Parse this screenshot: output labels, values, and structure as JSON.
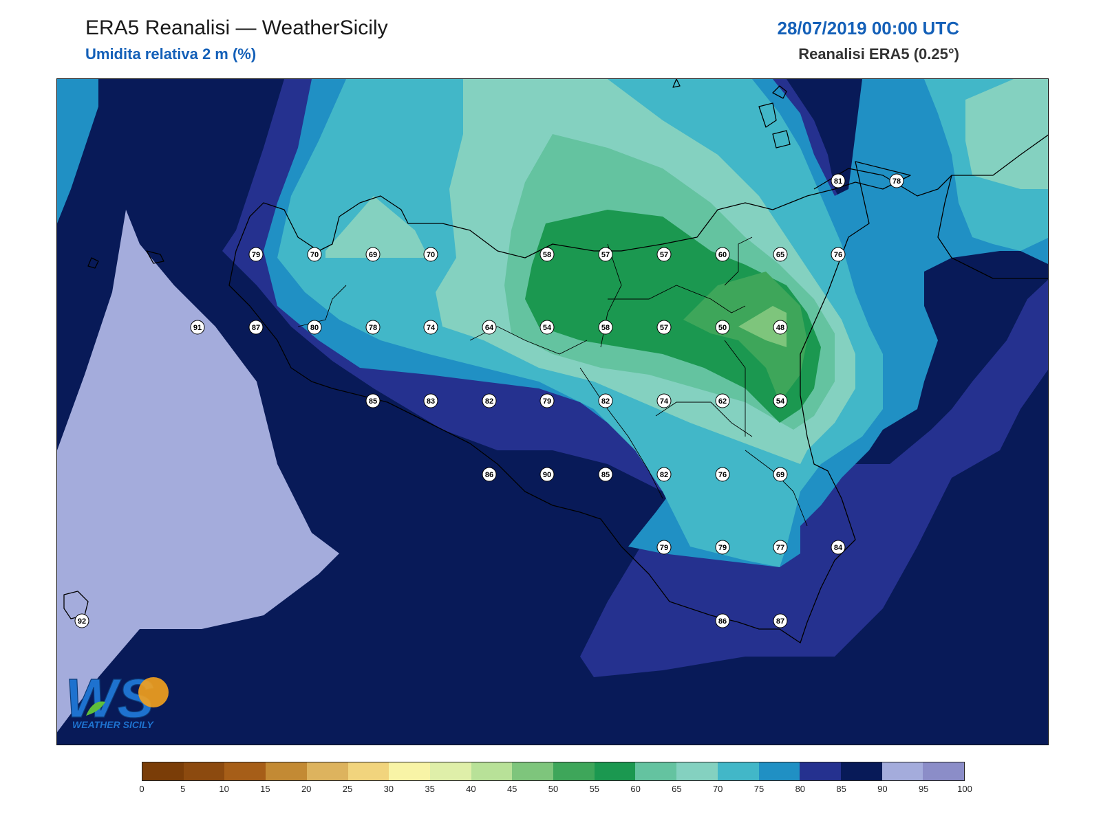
{
  "header": {
    "title": "ERA5 Reanalisi — WeatherSicily",
    "subtitle": "Umidita relativa 2 m (%)",
    "datetime": "28/07/2019 00:00 UTC",
    "source": "Reanalisi ERA5 (0.25°)"
  },
  "logo": {
    "monogram": "WS",
    "caption": "WEATHER SICILY"
  },
  "legend": {
    "ticks": [
      "0",
      "5",
      "10",
      "15",
      "20",
      "25",
      "30",
      "35",
      "40",
      "45",
      "50",
      "55",
      "60",
      "65",
      "70",
      "75",
      "80",
      "85",
      "90",
      "95",
      "100"
    ],
    "colors": [
      "#7a3d08",
      "#8c4a0f",
      "#a65e18",
      "#c38a34",
      "#ddb35e",
      "#f1d47d",
      "#f8f4a6",
      "#dfefa9",
      "#b8e198",
      "#7ec57c",
      "#3ea65a",
      "#1b9850",
      "#64c3a0",
      "#84d1c0",
      "#42b7c8",
      "#2090c4",
      "#25318f",
      "#081a58",
      "#a4acdc",
      "#8b8dc8"
    ]
  },
  "chart_data": {
    "type": "heatmap",
    "title": "Umidita relativa 2 m (%)",
    "valid_time": "28/07/2019 00:00 UTC",
    "colorbar_range": [
      0,
      100
    ],
    "colorbar_step": 5,
    "station_values": [
      {
        "row": 1,
        "values": [
          81,
          78
        ]
      },
      {
        "row": 2,
        "values": [
          79,
          70,
          69,
          70,
          58,
          57,
          57,
          60,
          65,
          76
        ]
      },
      {
        "row": 3,
        "values": [
          91,
          87,
          80,
          78,
          74,
          64,
          54,
          58,
          57,
          50,
          48
        ]
      },
      {
        "row": 4,
        "values": [
          85,
          83,
          82,
          79,
          82,
          74,
          62,
          54
        ]
      },
      {
        "row": 5,
        "values": [
          86,
          90,
          85,
          82,
          76,
          69
        ]
      },
      {
        "row": 6,
        "values": [
          79,
          79,
          77,
          84
        ]
      },
      {
        "row": 7,
        "values": [
          92,
          86,
          87
        ]
      }
    ]
  }
}
